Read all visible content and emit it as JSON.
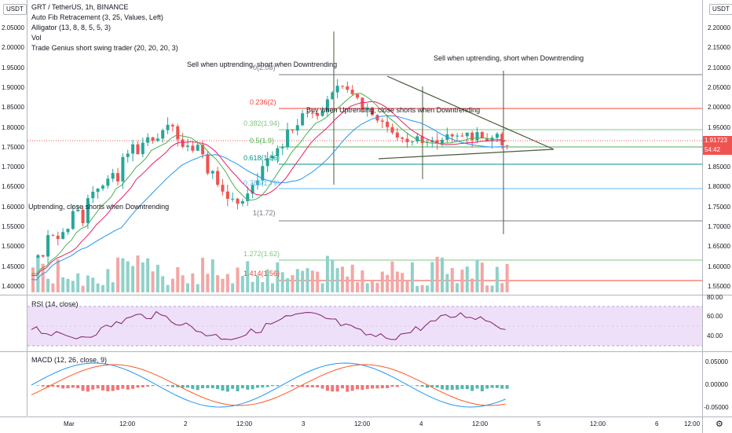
{
  "header": {
    "title": "GRT / TetherUS, 1h, BINANCE",
    "indicators": [
      "Auto Fib Retracement (3, 25, Values, Left)",
      "Alligator (13, 8, 8, 5, 5, 3)",
      "Vol",
      "Trade Genius short swing trader (20, 20, 20, 3)"
    ]
  },
  "left_axis": {
    "currency": "USDT",
    "ticks": [
      "2.05000",
      "2.00000",
      "1.95000",
      "1.90000",
      "1.85000",
      "1.80000",
      "1.75000",
      "1.70000",
      "1.65000",
      "1.60000",
      "1.55000",
      "1.50000",
      "1.45000",
      "1.40000"
    ]
  },
  "right_axis": {
    "currency": "USDT",
    "ticks": [
      "2.20000",
      "2.15000",
      "2.10000",
      "2.05000",
      "2.00000",
      "1.95000",
      "1.90000",
      "1.85000",
      "1.80000",
      "1.75000",
      "1.70000",
      "1.65000",
      "1.60000",
      "1.55000"
    ],
    "last_price": "1.91723",
    "countdown": "54:42",
    "rsi_ticks": [
      "80.00",
      "60.00",
      "40.00"
    ],
    "macd_ticks": [
      "0.05000",
      "0.00000",
      "-0.05000"
    ]
  },
  "fib_levels": [
    "0(2.08)",
    "0.236(2)",
    "0.382(1.94)",
    "0.5(1.9)",
    "0.618(1.86)",
    "0.786(1.79)",
    "1(1.72)",
    "1.272(1.62)",
    "1.414(1.56)"
  ],
  "annotations": {
    "sell_1": "Sell when uptrending, short when Downtrending",
    "sell_2": "Sell when uptrending, short when Downtrending",
    "buy_1": "Buy when Uptrending, close shorts when Downtrending",
    "buy_2": "Uptrending, close shorts when Downtrending"
  },
  "rsi": {
    "label": "RSI (14, close)"
  },
  "macd": {
    "label": "MACD (12, 26, close, 9)"
  },
  "time_axis": [
    "Mar",
    "12:00",
    "2",
    "12:00",
    "3",
    "12:00",
    "4",
    "12:00",
    "5",
    "12:00",
    "6",
    "12:00"
  ],
  "colors": {
    "up": "#26a69a",
    "down": "#ef5350",
    "vol_up": "#8fd1c9",
    "vol_down": "#f4a6a4",
    "blue_ma": "#2196f3",
    "red_ma": "#e91e63",
    "green_ma": "#4caf50",
    "rsi_line": "#7e1f6e",
    "rsi_band": "#efe0f9",
    "macd_line": "#2196f3",
    "signal_line": "#ff5722"
  }
}
